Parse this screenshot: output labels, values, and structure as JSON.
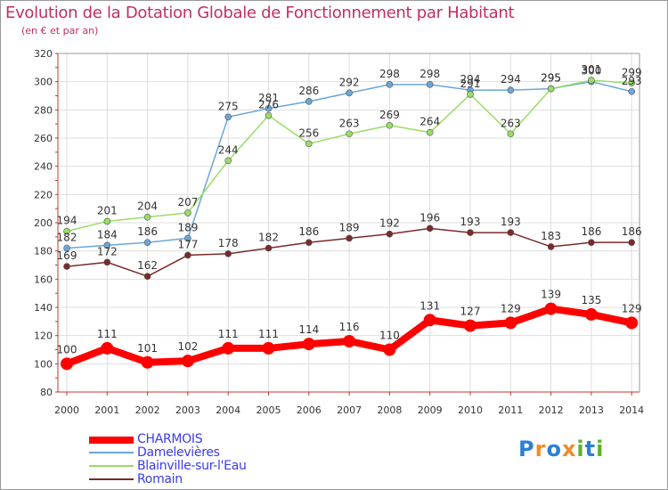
{
  "title": "Evolution de la Dotation Globale de Fonctionnement par Habitant",
  "subtitle": "(en € et par an)",
  "logo": {
    "text": "Proxiti",
    "letters": [
      "P",
      "r",
      "o",
      "x",
      "i",
      "t",
      "i"
    ],
    "colors": [
      "#2a7fd4",
      "#f28c28",
      "#2a7fd4",
      "#f28c28",
      "#59b32d",
      "#2a7fd4",
      "#59b32d"
    ]
  },
  "chart_data": {
    "type": "line",
    "title": "Evolution de la Dotation Globale de Fonctionnement par Habitant",
    "subtitle": "(en € et par an)",
    "x": [
      "2000",
      "2001",
      "2002",
      "2003",
      "2004",
      "2005",
      "2006",
      "2007",
      "2008",
      "2009",
      "2010",
      "2011",
      "2012",
      "2013",
      "2014"
    ],
    "ylim": [
      80,
      320
    ],
    "yticks": [
      80,
      100,
      120,
      140,
      160,
      180,
      200,
      220,
      240,
      260,
      280,
      300,
      320
    ],
    "grid": true,
    "legend_position": "bottom-left",
    "series": [
      {
        "name": "CHARMOIS",
        "color": "#ff0000",
        "width": 8,
        "values": [
          100,
          111,
          101,
          102,
          111,
          111,
          114,
          116,
          110,
          131,
          127,
          129,
          139,
          135,
          129
        ],
        "labels": [
          "100",
          "111",
          "101",
          "102",
          "111",
          "111",
          "114",
          "116",
          "110",
          "131",
          "127",
          "129",
          "139",
          "135",
          "129"
        ]
      },
      {
        "name": "Damelevières",
        "color": "#6aa6d8",
        "width": 1.5,
        "values": [
          182,
          184,
          186,
          189,
          275,
          281,
          286,
          292,
          298,
          298,
          294,
          294,
          295,
          300,
          293
        ],
        "labels": [
          "182",
          "184",
          "186",
          "189",
          "275",
          "281",
          "286",
          "292",
          "298",
          "298",
          "294",
          "294",
          "295",
          "300",
          "293"
        ]
      },
      {
        "name": "Blainville-sur-l'Eau",
        "color": "#99dd66",
        "width": 1.5,
        "values": [
          194,
          201,
          204,
          207,
          244,
          276,
          256,
          263,
          269,
          264,
          291,
          263,
          295,
          301,
          299
        ],
        "labels": [
          "194",
          "201",
          "204",
          "207",
          "244",
          "276",
          "256",
          "263",
          "269",
          "264",
          "291",
          "263",
          "295",
          "301",
          "299"
        ]
      },
      {
        "name": "Romain",
        "color": "#7a2a2a",
        "width": 1.5,
        "values": [
          169,
          172,
          162,
          177,
          178,
          182,
          186,
          189,
          192,
          196,
          193,
          193,
          183,
          186,
          186
        ],
        "labels": [
          "169",
          "172",
          "162",
          "177",
          "178",
          "182",
          "186",
          "189",
          "192",
          "196",
          "193",
          "193",
          "183",
          "186",
          "186"
        ]
      }
    ]
  }
}
